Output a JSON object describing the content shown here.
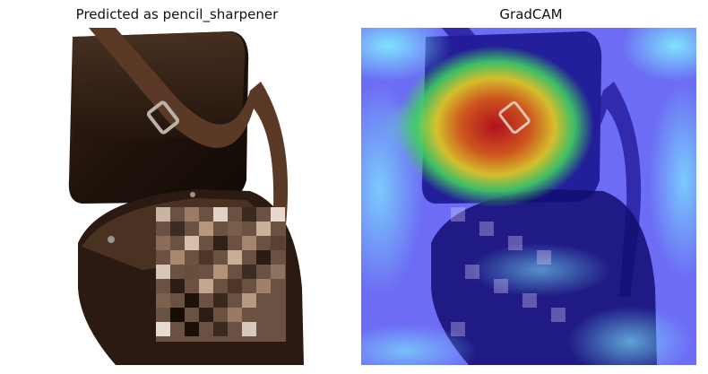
{
  "panels": {
    "left": {
      "title": "Predicted as pencil_sharpener"
    },
    "right": {
      "title": "GradCAM"
    }
  },
  "colors": {
    "leather_dark": "#2b1a12",
    "leather_mid": "#4a3020",
    "strap": "#5a3a26",
    "buckle": "#b8b2a8",
    "heat_low": "#1a2aff",
    "heat_mid": "#3fe7ff",
    "heat_high": "#d01010"
  },
  "icons": {
    "buckle": "buckle-icon"
  }
}
